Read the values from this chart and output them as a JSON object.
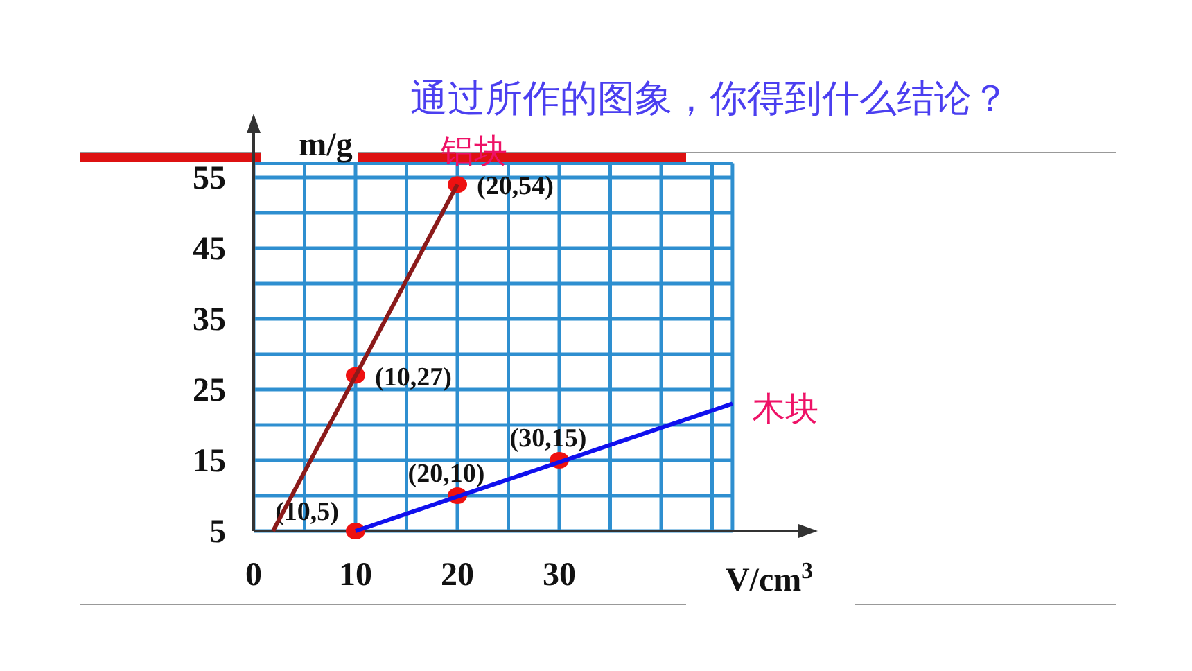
{
  "chart_data": {
    "type": "line",
    "title": "通过所作的图象，你得到什么结论？",
    "xlabel": "V/cm$^{3}$",
    "ylabel": "m/g",
    "xlim": [
      0,
      47
    ],
    "ylim": [
      5,
      57
    ],
    "xticks": [
      0,
      {
        "value": 5,
        "label": null
      },
      10,
      {
        "value": 15,
        "label": null
      },
      20,
      {
        "value": 25,
        "label": null
      },
      30,
      {
        "value": 35,
        "label": null
      },
      {
        "value": 40,
        "label": null
      },
      {
        "value": 45,
        "label": null
      }
    ],
    "yticks": [
      5,
      {
        "value": 10,
        "label": null
      },
      15,
      {
        "value": 20,
        "label": null
      },
      25,
      {
        "value": 30,
        "label": null
      },
      35,
      {
        "value": 40,
        "label": null
      },
      45,
      {
        "value": 50,
        "label": null
      },
      55
    ],
    "grid": true,
    "series": [
      {
        "name": "铝块",
        "color": "#8b1a1a",
        "x": [
          1.9,
          20
        ],
        "values": [
          5,
          54
        ]
      },
      {
        "name": "木块",
        "color": "#1010ee",
        "x": [
          10,
          47
        ],
        "values": [
          5,
          23
        ]
      },
      {
        "type": "scatter",
        "marker": "circle",
        "color": "#ee1111",
        "x": [
          10,
          20
        ],
        "values": [
          27,
          54
        ]
      },
      {
        "type": "scatter",
        "marker": "circle",
        "color": "#ee1111",
        "x": [
          10,
          20,
          30
        ],
        "values": [
          5,
          10,
          15
        ]
      }
    ],
    "annotations": [
      {
        "text": "(20,54)",
        "x": 20,
        "y": 54
      },
      {
        "text": "(10,27)",
        "x": 10,
        "y": 27
      },
      {
        "text": "(30,15)",
        "x": 30,
        "y": 15
      },
      {
        "text": "(20,10)",
        "x": 20,
        "y": 10
      },
      {
        "text": "(10,5)",
        "x": 10,
        "y": 5
      }
    ]
  }
}
